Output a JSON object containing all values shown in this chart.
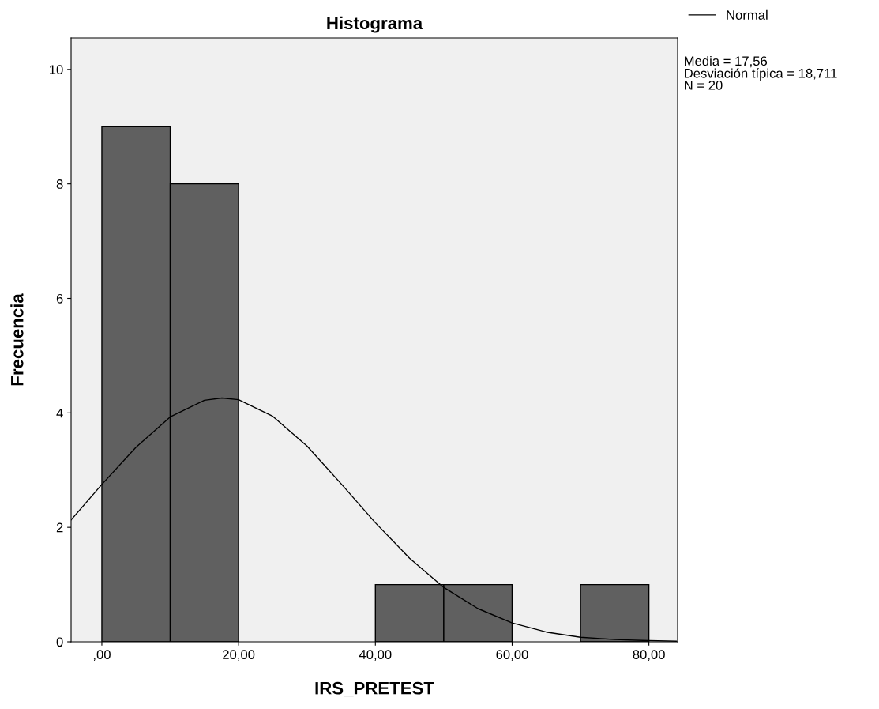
{
  "chart_data": {
    "type": "histogram",
    "title": "Histograma",
    "xlabel": "IRS_PRETEST",
    "ylabel": "Frecuencia",
    "bins": [
      0,
      10,
      20,
      30,
      40,
      50,
      60,
      70,
      80
    ],
    "values": [
      9,
      8,
      0,
      0,
      1,
      1,
      0,
      1
    ],
    "color": "#606060",
    "series": [
      {
        "name": "Normal",
        "type": "line",
        "color": "#000000",
        "x": [
          -4.5,
          0,
          5,
          10,
          15,
          17.56,
          20,
          25,
          30,
          35,
          40,
          45,
          50,
          55,
          60,
          65,
          70,
          75,
          80,
          84
        ],
        "values": [
          2.13,
          2.75,
          3.4,
          3.93,
          4.22,
          4.26,
          4.23,
          3.94,
          3.42,
          2.76,
          2.08,
          1.46,
          0.95,
          0.58,
          0.33,
          0.17,
          0.08,
          0.04,
          0.02,
          0.01
        ]
      }
    ],
    "xlim": [
      -4.5,
      84.2
    ],
    "ylim": [
      0,
      10.55
    ],
    "xticks": [
      {
        "value": 0,
        "label": ",00"
      },
      {
        "value": 20,
        "label": "20,00"
      },
      {
        "value": 40,
        "label": "40,00"
      },
      {
        "value": 60,
        "label": "60,00"
      },
      {
        "value": 80,
        "label": "80,00"
      }
    ],
    "yticks": [
      0,
      2,
      4,
      6,
      8,
      10
    ],
    "grid": false,
    "legend": "top right",
    "annotations": [
      "Media = 17,56",
      "Desviación típica = 18,711",
      "N = 20"
    ]
  }
}
